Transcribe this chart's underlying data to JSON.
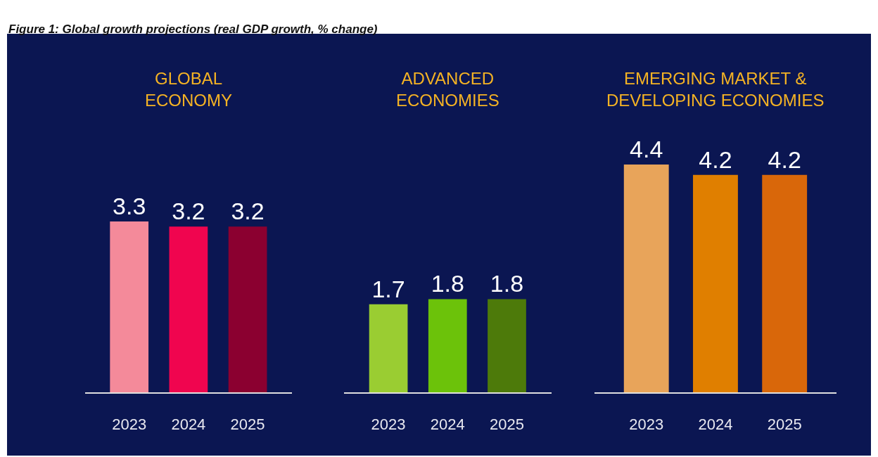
{
  "chart_data": [
    {
      "type": "bar",
      "title": "GLOBAL\nECONOMY",
      "categories": [
        "2023",
        "2024",
        "2025"
      ],
      "values": [
        3.3,
        3.2,
        3.2
      ],
      "colors": [
        "#f48a9a",
        "#f0054f",
        "#8b0030"
      ],
      "data_labels": true,
      "annotations": [
        "Figure 1: Global growth projections (real GDP growth, % change)"
      ]
    },
    {
      "type": "bar",
      "title": "ADVANCED\nECONOMIES",
      "categories": [
        "2023",
        "2024",
        "2025"
      ],
      "values": [
        1.7,
        1.8,
        1.8
      ],
      "colors": [
        "#9acd32",
        "#6cc20a",
        "#4d7a0a"
      ],
      "data_labels": true
    },
    {
      "type": "bar",
      "title": "EMERGING MARKET &\nDEVELOPING ECONOMIES",
      "categories": [
        "2023",
        "2024",
        "2025"
      ],
      "values": [
        4.4,
        4.2,
        4.2
      ],
      "colors": [
        "#e8a45a",
        "#e07f00",
        "#d9670a"
      ],
      "data_labels": true
    }
  ]
}
